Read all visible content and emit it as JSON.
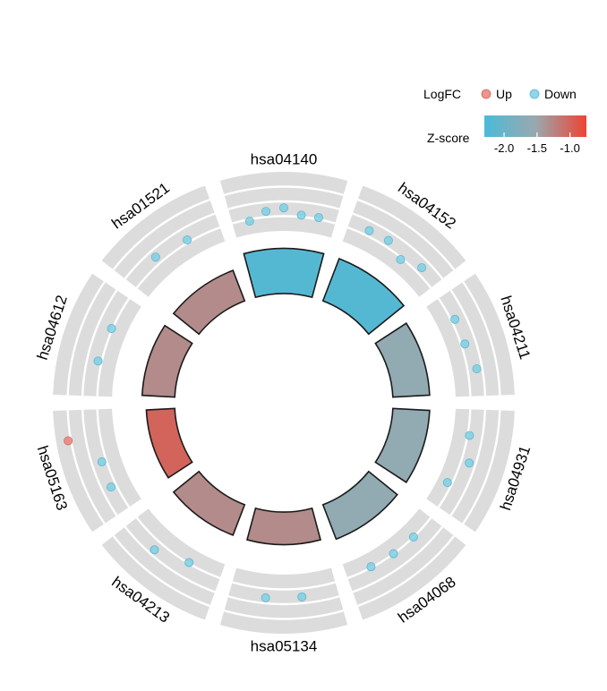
{
  "chart_data": {
    "type": "circular-GOplot",
    "legend": {
      "logfc_title": "LogFC",
      "up_label": "Up",
      "down_label": "Down",
      "zscore_title": "Z-score",
      "zscore_ticks": [
        "-2.0",
        "-1.5",
        "-1.0"
      ],
      "zscore_range": [
        -2.3,
        -0.75
      ],
      "gradient_colors": [
        "#4BBAD8",
        "#9AA8AE",
        "#EE4433"
      ],
      "up_color": "#E88378",
      "down_color": "#7FCFE3",
      "placement": "top-right"
    },
    "logfc_range": [
      -1.6,
      1.6
    ],
    "categories": [
      {
        "id": "hsa04140",
        "zscore": -2.2,
        "logfc": [
          -0.9,
          -0.5,
          -0.35,
          -0.7,
          -0.7
        ]
      },
      {
        "id": "hsa04152",
        "zscore": -2.2,
        "logfc": [
          -0.5,
          -0.45,
          -0.9,
          -0.45
        ]
      },
      {
        "id": "hsa04211",
        "zscore": -1.6,
        "logfc": [
          -0.6,
          -0.6,
          -0.3
        ]
      },
      {
        "id": "hsa04931",
        "zscore": -1.6,
        "logfc": [
          -0.7,
          -0.35,
          -1.05
        ]
      },
      {
        "id": "hsa04068",
        "zscore": -1.6,
        "logfc": [
          -0.8,
          -0.8,
          -0.85
        ]
      },
      {
        "id": "hsa05134",
        "zscore": -1.3,
        "logfc": [
          -0.35,
          -0.3
        ]
      },
      {
        "id": "hsa04213",
        "zscore": -1.3,
        "logfc": [
          -0.85,
          -0.3
        ]
      },
      {
        "id": "hsa05163",
        "zscore": -1.0,
        "logfc": [
          -0.5,
          -0.55,
          0.95
        ]
      },
      {
        "id": "hsa04612",
        "zscore": -1.3,
        "logfc": [
          -0.6,
          -0.75
        ]
      },
      {
        "id": "hsa01521",
        "zscore": -1.3,
        "logfc": [
          -0.4,
          -0.65
        ]
      }
    ]
  }
}
